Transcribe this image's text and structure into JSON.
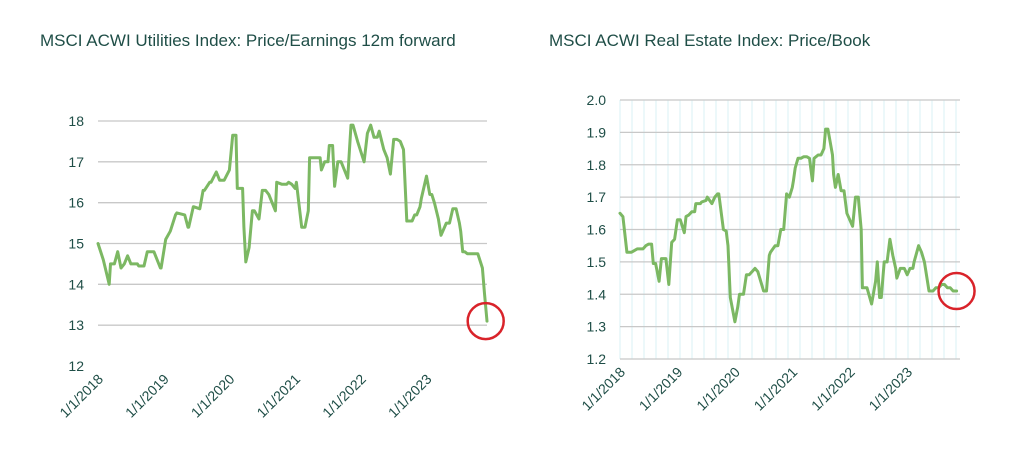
{
  "colors": {
    "line": "#7cb863",
    "grid": "#c8c8c8",
    "vgrid": "#d9f2f6",
    "text": "#1f4e47",
    "marker": "#d9232a"
  },
  "chart_data": [
    {
      "type": "line",
      "title": "MSCI ACWI Utilities Index: Price/Earnings 12m forward",
      "xlabel": "",
      "ylabel": "",
      "x_ticks": [
        "1/1/2018",
        "1/1/2019",
        "1/1/2020",
        "1/1/2021",
        "1/1/2022",
        "1/1/2023"
      ],
      "xlim": [
        2018.0,
        2023.92
      ],
      "ylim": [
        12,
        18
      ],
      "y_ticks": [
        "12",
        "13",
        "14",
        "15",
        "16",
        "17",
        "18"
      ],
      "grid": "horizontal",
      "highlight_marker": {
        "x": 2023.9,
        "y": 13.1
      },
      "series": [
        {
          "x": [
            2018.0,
            2018.08,
            2018.17,
            2018.19,
            2018.25,
            2018.3,
            2018.35,
            2018.4,
            2018.45,
            2018.5,
            2018.55,
            2018.6,
            2018.62,
            2018.7,
            2018.75,
            2018.85,
            2018.95,
            2018.96,
            2019.03,
            2019.1,
            2019.18,
            2019.2,
            2019.32,
            2019.37,
            2019.38,
            2019.45,
            2019.46,
            2019.55,
            2019.6,
            2019.62,
            2019.7,
            2019.72,
            2019.8,
            2019.85,
            2019.92,
            2020.0,
            2020.05,
            2020.1,
            2020.12,
            2020.2,
            2020.22,
            2020.25,
            2020.3,
            2020.35,
            2020.38,
            2020.45,
            2020.5,
            2020.55,
            2020.6,
            2020.7,
            2020.72,
            2020.8,
            2020.87,
            2020.9,
            2020.95,
            2021.0,
            2021.02,
            2021.1,
            2021.15,
            2021.2,
            2021.22,
            2021.3,
            2021.38,
            2021.4,
            2021.45,
            2021.5,
            2021.52,
            2021.57,
            2021.6,
            2021.65,
            2021.7,
            2021.75,
            2021.8,
            2021.85,
            2021.88,
            2021.95,
            2022.05,
            2022.1,
            2022.15,
            2022.2,
            2022.25,
            2022.28,
            2022.35,
            2022.4,
            2022.45,
            2022.5,
            2022.55,
            2022.6,
            2022.65,
            2022.7,
            2022.72,
            2022.78,
            2022.82,
            2022.85,
            2022.9,
            2022.92,
            2023.0,
            2023.05,
            2023.08,
            2023.12,
            2023.18,
            2023.22,
            2023.3,
            2023.35,
            2023.4,
            2023.45,
            2023.5,
            2023.52,
            2023.55,
            2023.58,
            2023.62,
            2023.7,
            2023.78,
            2023.85,
            2023.88,
            2023.92
          ],
          "values": [
            15.0,
            14.6,
            14.0,
            14.5,
            14.5,
            14.8,
            14.4,
            14.5,
            14.7,
            14.5,
            14.5,
            14.5,
            14.45,
            14.45,
            14.8,
            14.8,
            14.4,
            14.4,
            15.1,
            15.3,
            15.7,
            15.75,
            15.7,
            15.4,
            15.4,
            15.9,
            15.9,
            15.85,
            16.3,
            16.3,
            16.5,
            16.5,
            16.75,
            16.55,
            16.55,
            16.8,
            17.65,
            17.65,
            16.35,
            16.35,
            15.4,
            14.55,
            14.9,
            15.8,
            15.8,
            15.6,
            16.3,
            16.3,
            16.2,
            15.8,
            16.5,
            16.45,
            16.45,
            16.5,
            16.45,
            16.35,
            16.5,
            15.4,
            15.4,
            15.8,
            17.1,
            17.1,
            17.1,
            16.8,
            17.0,
            17.0,
            17.4,
            17.4,
            16.4,
            17.0,
            17.0,
            16.8,
            16.6,
            17.9,
            17.9,
            17.5,
            17.0,
            17.7,
            17.9,
            17.6,
            17.6,
            17.75,
            17.3,
            17.1,
            16.7,
            17.55,
            17.55,
            17.5,
            17.3,
            15.55,
            15.55,
            15.55,
            15.7,
            15.7,
            15.9,
            16.1,
            16.65,
            16.2,
            16.2,
            16.0,
            15.6,
            15.2,
            15.5,
            15.5,
            15.85,
            15.85,
            15.5,
            15.3,
            14.8,
            14.8,
            14.75,
            14.75,
            14.75,
            14.4,
            13.8,
            13.1
          ]
        }
      ]
    },
    {
      "type": "line",
      "title": "MSCI ACWI Real Estate Index: Price/Book",
      "xlabel": "",
      "ylabel": "",
      "x_ticks": [
        "1/1/2018",
        "1/1/2019",
        "1/1/2020",
        "1/1/2021",
        "1/1/2022",
        "1/1/2023"
      ],
      "xlim": [
        2018.0,
        2023.92
      ],
      "ylim": [
        1.2,
        2.0
      ],
      "y_ticks": [
        "1.2",
        "1.3",
        "1.4",
        "1.5",
        "1.6",
        "1.7",
        "1.8",
        "1.9",
        "2.0"
      ],
      "grid": "both",
      "highlight_marker": {
        "x": 2023.86,
        "y": 1.41
      },
      "series": [
        {
          "x": [
            2018.0,
            2018.05,
            2018.12,
            2018.2,
            2018.3,
            2018.4,
            2018.45,
            2018.5,
            2018.55,
            2018.58,
            2018.62,
            2018.68,
            2018.72,
            2018.8,
            2018.85,
            2018.9,
            2018.95,
            2019.0,
            2019.05,
            2019.12,
            2019.15,
            2019.2,
            2019.25,
            2019.3,
            2019.32,
            2019.4,
            2019.42,
            2019.5,
            2019.52,
            2019.6,
            2019.65,
            2019.7,
            2019.72,
            2019.8,
            2019.85,
            2019.88,
            2019.92,
            2020.0,
            2020.05,
            2020.08,
            2020.15,
            2020.2,
            2020.25,
            2020.3,
            2020.35,
            2020.4,
            2020.5,
            2020.55,
            2020.6,
            2020.62,
            2020.7,
            2020.75,
            2020.8,
            2020.85,
            2020.9,
            2020.95,
            2021.0,
            2021.02,
            2021.05,
            2021.1,
            2021.15,
            2021.2,
            2021.25,
            2021.3,
            2021.35,
            2021.38,
            2021.45,
            2021.5,
            2021.55,
            2021.58,
            2021.62,
            2021.7,
            2021.72,
            2021.75,
            2021.8,
            2021.85,
            2021.9,
            2021.95,
            2022.05,
            2022.1,
            2022.15,
            2022.2,
            2022.22,
            2022.3,
            2022.38,
            2022.45,
            2022.48,
            2022.52,
            2022.55,
            2022.6,
            2022.65,
            2022.7,
            2022.75,
            2022.8,
            2022.82,
            2022.88,
            2022.95,
            2023.0,
            2023.05,
            2023.1,
            2023.12,
            2023.2,
            2023.25,
            2023.3,
            2023.38,
            2023.45,
            2023.5,
            2023.55,
            2023.6,
            2023.65,
            2023.7,
            2023.75,
            2023.8,
            2023.86
          ],
          "values": [
            1.65,
            1.64,
            1.53,
            1.53,
            1.54,
            1.54,
            1.55,
            1.555,
            1.555,
            1.495,
            1.495,
            1.44,
            1.51,
            1.51,
            1.43,
            1.56,
            1.57,
            1.63,
            1.63,
            1.59,
            1.64,
            1.645,
            1.655,
            1.655,
            1.68,
            1.68,
            1.685,
            1.69,
            1.7,
            1.68,
            1.7,
            1.71,
            1.71,
            1.6,
            1.595,
            1.55,
            1.39,
            1.315,
            1.36,
            1.4,
            1.4,
            1.46,
            1.46,
            1.47,
            1.48,
            1.47,
            1.41,
            1.41,
            1.52,
            1.53,
            1.55,
            1.55,
            1.6,
            1.6,
            1.71,
            1.7,
            1.73,
            1.75,
            1.79,
            1.82,
            1.82,
            1.825,
            1.825,
            1.82,
            1.75,
            1.82,
            1.83,
            1.83,
            1.85,
            1.91,
            1.91,
            1.83,
            1.77,
            1.73,
            1.77,
            1.72,
            1.72,
            1.65,
            1.61,
            1.7,
            1.7,
            1.6,
            1.42,
            1.42,
            1.37,
            1.44,
            1.5,
            1.39,
            1.39,
            1.5,
            1.5,
            1.57,
            1.52,
            1.48,
            1.45,
            1.48,
            1.48,
            1.46,
            1.48,
            1.48,
            1.5,
            1.55,
            1.53,
            1.5,
            1.41,
            1.41,
            1.42,
            1.42,
            1.43,
            1.43,
            1.42,
            1.42,
            1.41,
            1.41
          ]
        }
      ]
    }
  ]
}
